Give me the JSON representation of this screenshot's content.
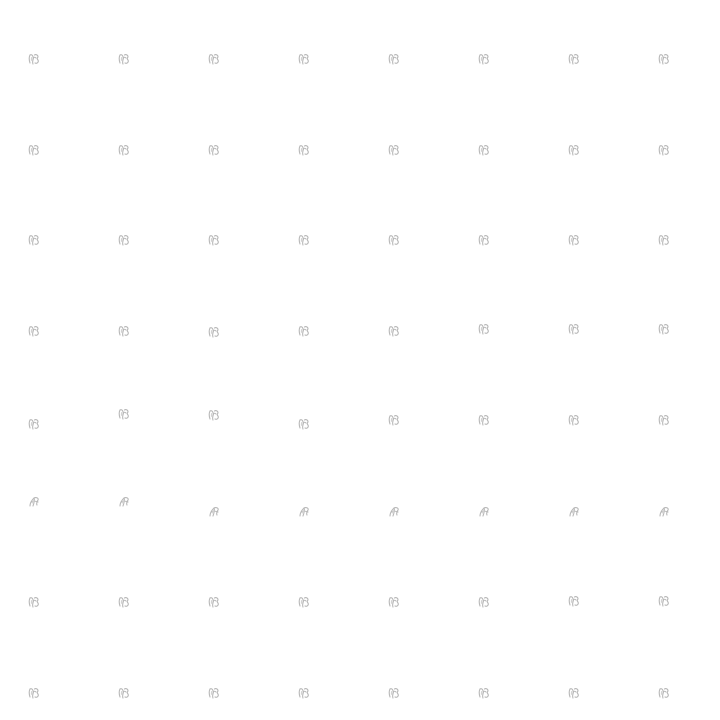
{
  "background_color": "#ffffff",
  "glyph_color": "#b7b7b7",
  "grid": {
    "rows": 8,
    "columns": 8
  },
  "row_icons": [
    "outlined-scribble-icon",
    "outlined-scribble-icon",
    "outlined-scribble-icon",
    "outlined-scribble-icon",
    "outlined-scribble-icon",
    "slanted-scribble-icon",
    "outlined-scribble-icon",
    "outlined-scribble-icon"
  ]
}
